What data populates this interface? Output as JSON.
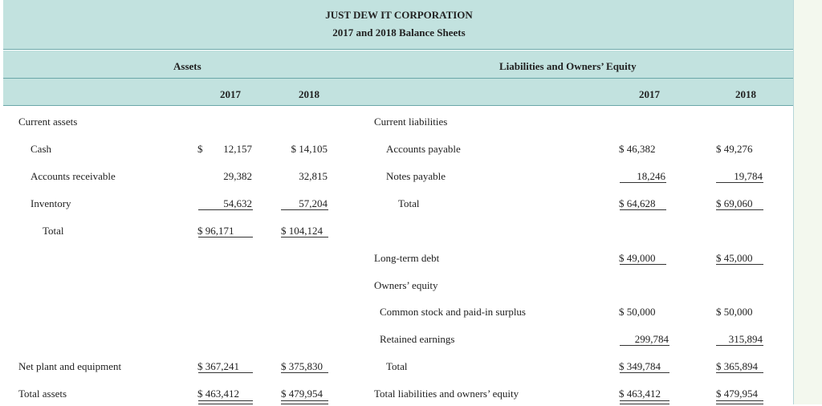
{
  "title": "JUST DEW IT CORPORATION",
  "subtitle": "2017 and 2018 Balance Sheets",
  "headers": {
    "assets": "Assets",
    "liabilities": "Liabilities and Owners’ Equity",
    "year_2017": "2017",
    "year_2018": "2018"
  },
  "assets": {
    "current_assets": "Current assets",
    "cash": {
      "label": "Cash",
      "v2017": "$ 12,157",
      "v2018": "$ 14,105"
    },
    "receivables": {
      "label": "Accounts receivable",
      "v2017": "29,382",
      "v2018": "32,815"
    },
    "inventory": {
      "label": "Inventory",
      "v2017": "54,632",
      "v2018": "57,204"
    },
    "total": {
      "label": "Total",
      "v2017": "$ 96,171",
      "v2018": "$ 104,124"
    },
    "net_plant": {
      "label": "Net plant and equipment",
      "v2017": "$ 367,241",
      "v2018": "$ 375,830"
    },
    "total_assets": {
      "label": "Total assets",
      "v2017": "$ 463,412",
      "v2018": "$ 479,954"
    }
  },
  "liabilities": {
    "current_liabilities": "Current liabilities",
    "accounts_payable": {
      "label": "Accounts payable",
      "v2017": "$ 46,382",
      "v2018": "$ 49,276"
    },
    "notes_payable": {
      "label": "Notes payable",
      "v2017": "18,246",
      "v2018": "19,784"
    },
    "total": {
      "label": "Total",
      "v2017": "$ 64,628",
      "v2018": "$ 69,060"
    },
    "long_term_debt": {
      "label": "Long-term debt",
      "v2017": "$ 49,000",
      "v2018": "$ 45,000"
    },
    "owners_equity": "Owners’ equity",
    "common_stock": {
      "label": "Common stock and paid-in surplus",
      "v2017": "$ 50,000",
      "v2018": "$ 50,000"
    },
    "retained_earnings": {
      "label": "Retained earnings",
      "v2017": "299,784",
      "v2018": "315,894"
    },
    "equity_total": {
      "label": "Total",
      "v2017": "$ 349,784",
      "v2018": "$ 365,894"
    },
    "total_liabilities": {
      "label": "Total liabilities and owners’ equity",
      "v2017": "$ 463,412",
      "v2018": "$ 479,954"
    }
  }
}
